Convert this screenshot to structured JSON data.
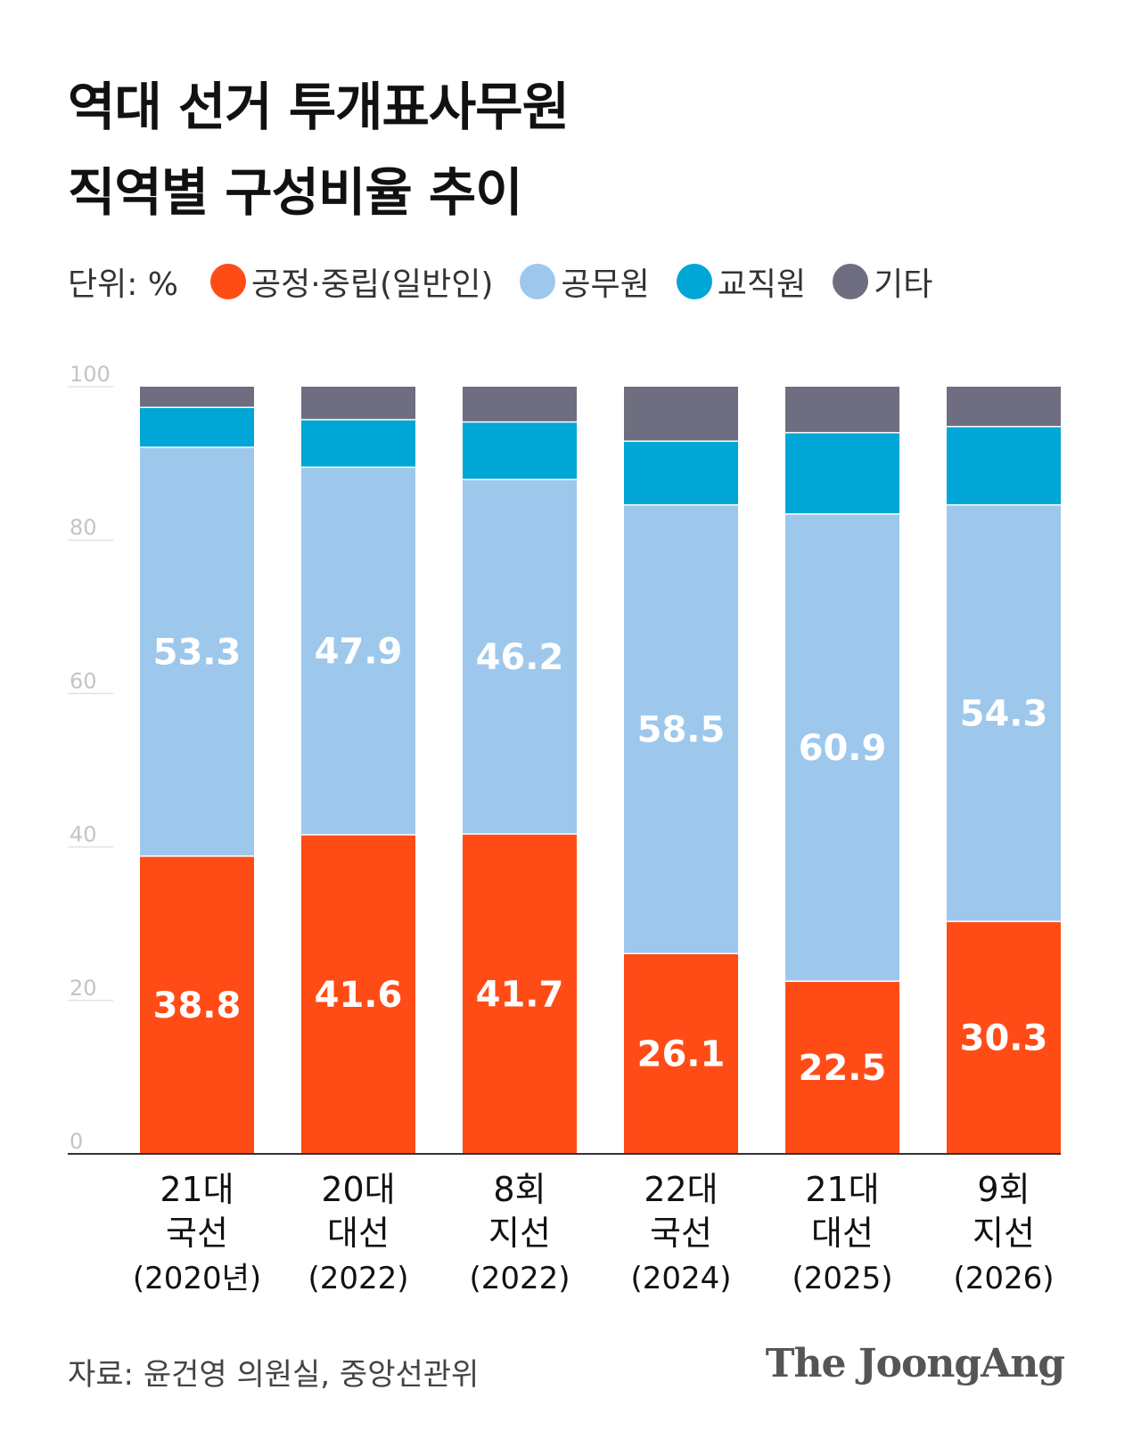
{
  "title": {
    "line1": "역대 선거 투개표사무원",
    "line2": "직역별 구성비율 추이"
  },
  "legend": {
    "unit": "단위: %",
    "items": [
      {
        "label": "공정·중립(일반인)",
        "color": "#ff4c17"
      },
      {
        "label": "공무원",
        "color": "#9dc8ec"
      },
      {
        "label": "교직원",
        "color": "#00a6d6"
      },
      {
        "label": "기타",
        "color": "#6e6e80"
      }
    ]
  },
  "chart_data": {
    "type": "bar",
    "stacked": true,
    "ylim": [
      0,
      100
    ],
    "yticks": [
      "0",
      "20",
      "40",
      "60",
      "80",
      "100"
    ],
    "categories": [
      [
        "21대",
        "국선",
        "(2020년)"
      ],
      [
        "20대",
        "대선",
        "(2022)"
      ],
      [
        "8회",
        "지선",
        "(2022)"
      ],
      [
        "22대",
        "국선",
        "(2024)"
      ],
      [
        "21대",
        "대선",
        "(2025)"
      ],
      [
        "9회",
        "지선",
        "(2026)"
      ]
    ],
    "series": [
      {
        "name": "공정·중립(일반인)",
        "color": "#ff4c17",
        "values": [
          38.8,
          41.6,
          41.7,
          26.1,
          22.5,
          30.3
        ],
        "labels": [
          "38.8",
          "41.6",
          "41.7",
          "26.1",
          "22.5",
          "30.3"
        ]
      },
      {
        "name": "공무원",
        "color": "#9dc8ec",
        "values": [
          53.3,
          47.9,
          46.2,
          58.5,
          60.9,
          54.3
        ],
        "labels": [
          "53.3",
          "47.9",
          "46.2",
          "58.5",
          "60.9",
          "54.3"
        ]
      },
      {
        "name": "교직원",
        "color": "#00a6d6",
        "values": [
          5.2,
          6.2,
          7.5,
          8.3,
          10.6,
          10.2
        ]
      },
      {
        "name": "기타",
        "color": "#6e6e80",
        "values": [
          2.7,
          4.3,
          4.6,
          7.1,
          6.0,
          5.2
        ]
      }
    ]
  },
  "source": "자료: 윤건영 의원실, 중앙선관위",
  "brand": "The JoongAng"
}
